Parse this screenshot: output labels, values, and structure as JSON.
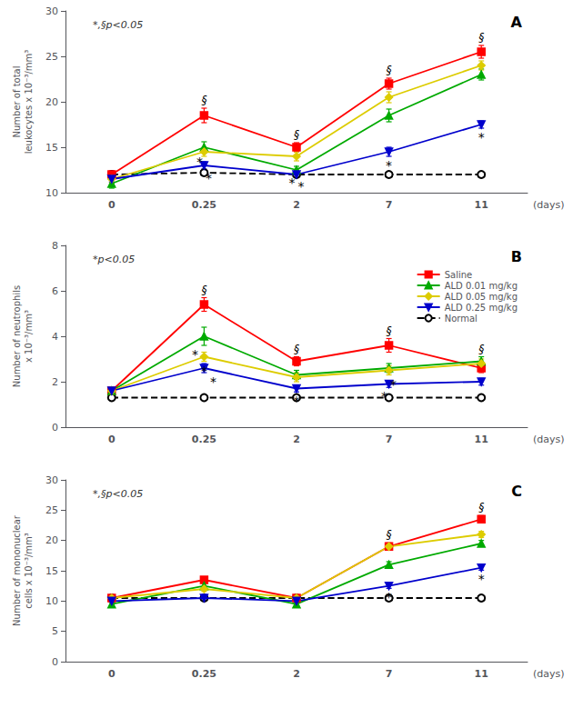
{
  "chart_data": [
    {
      "type": "line",
      "title": "A",
      "subtitle": "*,§p<0.05",
      "xlabel": "(days)",
      "ylabel": "Number of total\nleukocytes x 10⁻³/mm³",
      "categories": [
        "0",
        "0.25",
        "2",
        "7",
        "11"
      ],
      "series": [
        {
          "name": "Saline",
          "color": "#FF0000",
          "marker": "square",
          "line_style": "solid",
          "values": [
            12.0,
            18.5,
            15.0,
            22.0,
            25.5
          ],
          "err": [
            0.4,
            0.8,
            0.5,
            0.6,
            0.7
          ]
        },
        {
          "name": "ALD 0.01 mg/kg",
          "color": "#00AA00",
          "marker": "triangle",
          "line_style": "solid",
          "values": [
            11.0,
            15.0,
            12.5,
            18.5,
            23.0
          ],
          "err": [
            0.5,
            0.6,
            0.4,
            0.7,
            0.6
          ]
        },
        {
          "name": "ALD 0.05 mg/kg",
          "color": "#DDCC00",
          "marker": "diamond",
          "line_style": "solid",
          "values": [
            11.5,
            14.5,
            14.0,
            20.5,
            24.0
          ],
          "err": [
            0.4,
            0.5,
            0.5,
            0.6,
            0.5
          ]
        },
        {
          "name": "ALD 0.25 mg/kg",
          "color": "#0000CC",
          "marker": "triangle_down",
          "line_style": "solid",
          "values": [
            11.5,
            13.0,
            12.0,
            14.5,
            17.5
          ],
          "err": [
            0.3,
            0.4,
            0.3,
            0.5,
            0.4
          ]
        },
        {
          "name": "Normal",
          "color": "#000000",
          "marker": "open_circle",
          "line_style": "dashed",
          "values": [
            12.0,
            12.2,
            12.0,
            12.0,
            12.0
          ],
          "err": [
            0.15,
            0.15,
            0.15,
            0.15,
            0.15
          ]
        }
      ],
      "ylim": [
        10,
        30
      ],
      "yticks": [
        10,
        15,
        20,
        25,
        30
      ],
      "grid": false,
      "annotations": [
        {
          "text": "§",
          "x": "0.25",
          "series": "Saline",
          "side": "above"
        },
        {
          "text": "§",
          "x": "2",
          "series": "Saline",
          "side": "above"
        },
        {
          "text": "§",
          "x": "7",
          "series": "Saline",
          "side": "above"
        },
        {
          "text": "§",
          "x": "11",
          "series": "Saline",
          "side": "above"
        },
        {
          "text": "*",
          "x": "0.25",
          "series": "ALD 0.01 mg/kg",
          "side": "below"
        },
        {
          "text": "*",
          "x": "0.25",
          "series": "ALD 0.25 mg/kg",
          "side": "below"
        },
        {
          "text": "*",
          "x": "2",
          "series": "ALD 0.01 mg/kg",
          "side": "below"
        },
        {
          "text": "*",
          "x": "2",
          "series": "ALD 0.25 mg/kg",
          "side": "below"
        },
        {
          "text": "*",
          "x": "7",
          "series": "ALD 0.25 mg/kg",
          "side": "below"
        },
        {
          "text": "*",
          "x": "11",
          "series": "ALD 0.25 mg/kg",
          "side": "below"
        }
      ]
    },
    {
      "type": "line",
      "title": "B",
      "subtitle": "*p<0.05",
      "xlabel": "(days)",
      "ylabel": "Number of neutrophils\nx 10⁻³/mm³",
      "categories": [
        "0",
        "0.25",
        "2",
        "7",
        "11"
      ],
      "series": [
        {
          "name": "Saline",
          "color": "#FF0000",
          "marker": "square",
          "line_style": "solid",
          "values": [
            1.6,
            5.4,
            2.9,
            3.6,
            2.6
          ],
          "err": [
            0.1,
            0.3,
            0.2,
            0.3,
            0.2
          ]
        },
        {
          "name": "ALD 0.01 mg/kg",
          "color": "#00AA00",
          "marker": "triangle",
          "line_style": "solid",
          "values": [
            1.6,
            4.0,
            2.3,
            2.6,
            2.9
          ],
          "err": [
            0.1,
            0.4,
            0.2,
            0.2,
            0.2
          ]
        },
        {
          "name": "ALD 0.05 mg/kg",
          "color": "#DDCC00",
          "marker": "diamond",
          "line_style": "solid",
          "values": [
            1.6,
            3.1,
            2.2,
            2.5,
            2.8
          ],
          "err": [
            0.1,
            0.2,
            0.2,
            0.2,
            0.2
          ]
        },
        {
          "name": "ALD 0.25 mg/kg",
          "color": "#0000CC",
          "marker": "triangle_down",
          "line_style": "solid",
          "values": [
            1.6,
            2.6,
            1.7,
            1.9,
            2.0
          ],
          "err": [
            0.1,
            0.2,
            0.15,
            0.15,
            0.15
          ]
        },
        {
          "name": "Normal",
          "color": "#000000",
          "marker": "open_circle",
          "line_style": "dashed",
          "values": [
            1.3,
            1.3,
            1.3,
            1.3,
            1.3
          ],
          "err": [
            0.08,
            0.08,
            0.08,
            0.08,
            0.08
          ]
        }
      ],
      "ylim": [
        0,
        8
      ],
      "yticks": [
        0,
        2,
        4,
        6,
        8
      ],
      "grid": false,
      "legend": "upper right",
      "annotations": [
        {
          "text": "§",
          "x": "0.25",
          "series": "Saline",
          "side": "above"
        },
        {
          "text": "§",
          "x": "2",
          "series": "Saline",
          "side": "above"
        },
        {
          "text": "§",
          "x": "7",
          "series": "Saline",
          "side": "above"
        },
        {
          "text": "§",
          "x": "11",
          "series": "ALD 0.01 mg/kg",
          "side": "above"
        },
        {
          "text": "*",
          "x": "0.25",
          "series": "ALD 0.01 mg/kg",
          "side": "below"
        },
        {
          "text": "*",
          "x": "0.25",
          "series": "ALD 0.05 mg/kg",
          "side": "below"
        },
        {
          "text": "*",
          "x": "0.25",
          "series": "ALD 0.25 mg/kg",
          "side": "below"
        },
        {
          "text": "*",
          "x": "2",
          "series": "ALD 0.25 mg/kg",
          "side": "below"
        },
        {
          "text": "*",
          "x": "7",
          "series": "ALD 0.25 mg/kg",
          "side": "below"
        },
        {
          "text": "*",
          "x": "7",
          "series": "ALD 0.05 mg/kg",
          "side": "below"
        }
      ]
    },
    {
      "type": "line",
      "title": "C",
      "subtitle": "*,§p<0.05",
      "xlabel": "(days)",
      "ylabel": "Number of mononuclear\ncells x 10⁻³/mm³",
      "categories": [
        "0",
        "0.25",
        "2",
        "7",
        "11"
      ],
      "series": [
        {
          "name": "Saline",
          "color": "#FF0000",
          "marker": "square",
          "line_style": "solid",
          "values": [
            10.5,
            13.5,
            10.5,
            19.0,
            23.5
          ],
          "err": [
            0.3,
            0.5,
            0.3,
            0.6,
            0.6
          ]
        },
        {
          "name": "ALD 0.01 mg/kg",
          "color": "#00AA00",
          "marker": "triangle",
          "line_style": "solid",
          "values": [
            9.5,
            12.5,
            9.5,
            16.0,
            19.5
          ],
          "err": [
            0.3,
            0.4,
            0.3,
            0.5,
            0.5
          ]
        },
        {
          "name": "ALD 0.05 mg/kg",
          "color": "#DDCC00",
          "marker": "diamond",
          "line_style": "solid",
          "values": [
            10.5,
            12.0,
            10.5,
            19.0,
            21.0
          ],
          "err": [
            0.3,
            0.4,
            0.3,
            0.5,
            0.5
          ]
        },
        {
          "name": "ALD 0.25 mg/kg",
          "color": "#0000CC",
          "marker": "triangle_down",
          "line_style": "solid",
          "values": [
            10.0,
            10.5,
            10.0,
            12.5,
            15.5
          ],
          "err": [
            0.2,
            0.3,
            0.2,
            0.4,
            0.4
          ]
        },
        {
          "name": "Normal",
          "color": "#000000",
          "marker": "open_circle",
          "line_style": "dashed",
          "values": [
            10.5,
            10.5,
            10.5,
            10.5,
            10.5
          ],
          "err": [
            0.15,
            0.15,
            0.15,
            0.15,
            0.15
          ]
        }
      ],
      "ylim": [
        0,
        30
      ],
      "yticks": [
        0,
        5,
        10,
        15,
        20,
        25,
        30
      ],
      "grid": false,
      "annotations": [
        {
          "text": "§",
          "x": "7",
          "series": "Saline",
          "side": "above"
        },
        {
          "text": "§",
          "x": "11",
          "series": "Saline",
          "side": "above"
        },
        {
          "text": "*",
          "x": "7",
          "series": "ALD 0.25 mg/kg",
          "side": "below"
        },
        {
          "text": "*",
          "x": "11",
          "series": "ALD 0.25 mg/kg",
          "side": "below"
        }
      ]
    }
  ]
}
